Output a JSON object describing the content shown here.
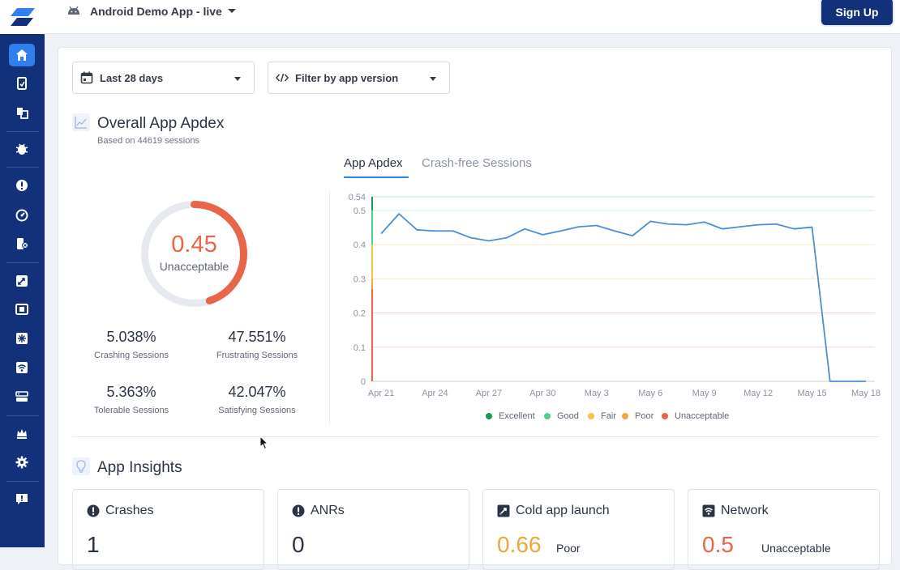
{
  "topbar": {
    "app_name": "Android Demo App - live",
    "signup_label": "Sign Up"
  },
  "filters": {
    "date_range": "Last 28 days",
    "app_version": "Filter by app version"
  },
  "apdex": {
    "title": "Overall App Apdex",
    "subtitle": "Based on 44619 sessions",
    "score": "0.45",
    "score_label": "Unacceptable",
    "score_fraction": 0.45,
    "stats": [
      {
        "value": "5.038%",
        "label": "Crashing Sessions"
      },
      {
        "value": "47.551%",
        "label": "Frustrating Sessions"
      },
      {
        "value": "5.363%",
        "label": "Tolerable Sessions"
      },
      {
        "value": "42.047%",
        "label": "Satisfying Sessions"
      }
    ]
  },
  "tabs": [
    {
      "label": "App Apdex",
      "active": true
    },
    {
      "label": "Crash-free Sessions",
      "active": false
    }
  ],
  "chart_data": {
    "type": "line",
    "x_tick_labels": [
      "Apr 21",
      "Apr 24",
      "Apr 27",
      "Apr 30",
      "May 3",
      "May 6",
      "May 9",
      "May 12",
      "May 15",
      "May 18"
    ],
    "y_tick_labels": [
      "0.54",
      "0.5",
      "0.4",
      "0.3",
      "0.2",
      "0.1",
      "0"
    ],
    "ylim": [
      0,
      0.54
    ],
    "x": [
      "Apr 21",
      "Apr 22",
      "Apr 23",
      "Apr 24",
      "Apr 25",
      "Apr 26",
      "Apr 27",
      "Apr 28",
      "Apr 29",
      "Apr 30",
      "May 1",
      "May 2",
      "May 3",
      "May 4",
      "May 5",
      "May 6",
      "May 7",
      "May 8",
      "May 9",
      "May 10",
      "May 11",
      "May 12",
      "May 13",
      "May 14",
      "May 15",
      "May 16",
      "May 17",
      "May 18"
    ],
    "values": [
      0.432,
      0.49,
      0.443,
      0.44,
      0.44,
      0.42,
      0.411,
      0.42,
      0.446,
      0.429,
      0.44,
      0.452,
      0.456,
      0.44,
      0.426,
      0.468,
      0.46,
      0.458,
      0.466,
      0.446,
      0.452,
      0.458,
      0.46,
      0.446,
      0.451,
      0.0,
      0.0,
      0.0
    ],
    "bands": [
      {
        "name": "Excellent",
        "from": 0.5,
        "to": 0.54,
        "color": "#1b9b4b"
      },
      {
        "name": "Good",
        "from": 0.4,
        "to": 0.5,
        "color": "#4fcf8f"
      },
      {
        "name": "Fair",
        "from": 0.3,
        "to": 0.4,
        "color": "#f5c542"
      },
      {
        "name": "Poor",
        "from": 0.27,
        "to": 0.3,
        "color": "#f2a53a"
      },
      {
        "name": "Unacceptable",
        "from": 0.0,
        "to": 0.27,
        "color": "#e8654a"
      }
    ],
    "line_color": "#4a8fd6",
    "legend": [
      "Excellent",
      "Good",
      "Fair",
      "Poor",
      "Unacceptable"
    ]
  },
  "insights": {
    "title": "App Insights",
    "cards": [
      {
        "title": "Crashes",
        "icon": "alert-icon",
        "value": "1",
        "color": "#2b3445",
        "note": ""
      },
      {
        "title": "ANRs",
        "icon": "alert-icon",
        "value": "0",
        "color": "#2b3445",
        "note": ""
      },
      {
        "title": "Cold app launch",
        "icon": "rocket-icon",
        "value": "0.66",
        "color": "#f2a53a",
        "note": "Poor"
      },
      {
        "title": "Network",
        "icon": "wifi-icon",
        "value": "0.5",
        "color": "#e8654a",
        "note": "Unacceptable"
      }
    ]
  },
  "sidebar_icons": [
    "home-icon",
    "reports-icon",
    "copy-icon",
    "bug-icon",
    "alert-icon",
    "gauge-icon",
    "app-crash-icon",
    "rocket-icon",
    "screen-loading-icon",
    "ui-hang-icon",
    "network-icon",
    "api-icon",
    "crown-icon",
    "settings-gear-icon",
    "feedback-icon"
  ],
  "colors": {
    "sidebar": "#13307a",
    "accent": "#2f80ed",
    "unacceptable": "#e8654a",
    "poor": "#f2a53a"
  }
}
